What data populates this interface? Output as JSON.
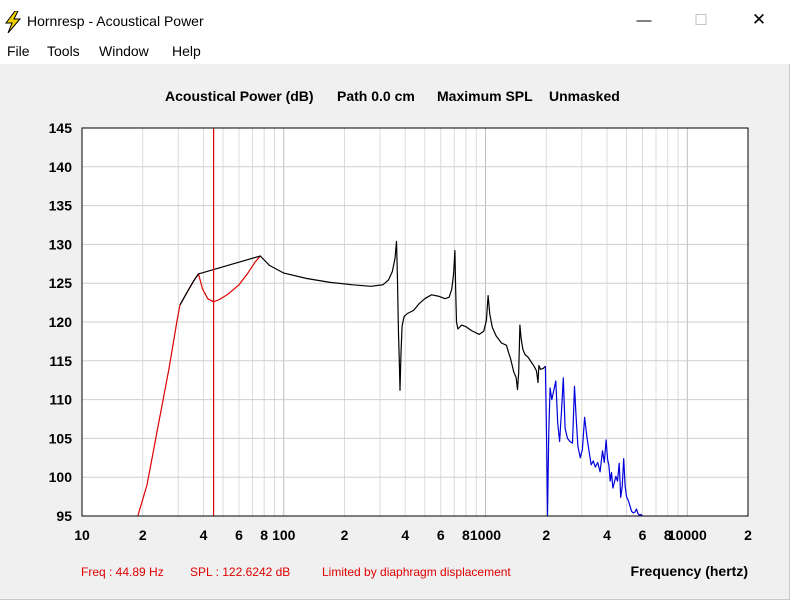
{
  "window": {
    "title": "Hornresp - Acoustical Power",
    "controls": {
      "minimize": "—",
      "maximize": "☐",
      "close": "✕"
    }
  },
  "menu": {
    "file": "File",
    "tools": "Tools",
    "window": "Window",
    "help": "Help"
  },
  "header": {
    "mode": "Acoustical Power (dB)",
    "path": "Path 0.0 cm",
    "spl": "Maximum SPL",
    "mask": "Unmasked"
  },
  "status": {
    "freq": "Freq : 44.89 Hz",
    "spl": "SPL : 122.6242 dB",
    "note": "Limited by diaphragm displacement"
  },
  "x_axis_title": "Frequency (hertz)",
  "colors": {
    "limited": "#e00000",
    "normal": "#000000",
    "high": "#0000dd",
    "marker": "#e00000",
    "status": "#e00000"
  },
  "chart_data": {
    "type": "line",
    "x_scale": "log",
    "xlim": [
      10,
      20000
    ],
    "ylim": [
      95,
      145
    ],
    "y_ticks": [
      145,
      140,
      135,
      130,
      125,
      120,
      115,
      110,
      105,
      100,
      95
    ],
    "x_ticks": [
      {
        "value": 10,
        "label": "10"
      },
      {
        "value": 20,
        "label": "2"
      },
      {
        "value": 40,
        "label": "4"
      },
      {
        "value": 60,
        "label": "6"
      },
      {
        "value": 80,
        "label": "8"
      },
      {
        "value": 100,
        "label": "100"
      },
      {
        "value": 200,
        "label": "2"
      },
      {
        "value": 400,
        "label": "4"
      },
      {
        "value": 600,
        "label": "6"
      },
      {
        "value": 800,
        "label": "8"
      },
      {
        "value": 1000,
        "label": "1000"
      },
      {
        "value": 2000,
        "label": "2"
      },
      {
        "value": 4000,
        "label": "4"
      },
      {
        "value": 6000,
        "label": "6"
      },
      {
        "value": 8000,
        "label": "8"
      },
      {
        "value": 10000,
        "label": "10000"
      },
      {
        "value": 20000,
        "label": "2"
      }
    ],
    "grid": true,
    "marker_x": 44.89,
    "series": [
      {
        "color": "#e00000",
        "points": [
          [
            18.9,
            95
          ],
          [
            21,
            99
          ],
          [
            24,
            107
          ],
          [
            27,
            114
          ],
          [
            29.5,
            120
          ],
          [
            30.6,
            122.2
          ],
          [
            32,
            123.1
          ],
          [
            34,
            124.3
          ],
          [
            36,
            125.4
          ],
          [
            37.8,
            126.2
          ],
          [
            39.5,
            124.3
          ],
          [
            42,
            123
          ],
          [
            44.89,
            122.6
          ],
          [
            48,
            122.9
          ],
          [
            53,
            123.6
          ],
          [
            60,
            124.8
          ],
          [
            66,
            126.2
          ],
          [
            72,
            127.7
          ],
          [
            76.5,
            128.5
          ]
        ]
      },
      {
        "color": "#000000",
        "points": [
          [
            30.6,
            122.2
          ],
          [
            32,
            123.1
          ],
          [
            34,
            124.3
          ],
          [
            36,
            125.4
          ],
          [
            37.8,
            126.2
          ],
          [
            76.5,
            128.5
          ],
          [
            85,
            127.3
          ],
          [
            100,
            126.3
          ],
          [
            130,
            125.6
          ],
          [
            170,
            125.1
          ],
          [
            220,
            124.8
          ],
          [
            270,
            124.6
          ],
          [
            310,
            124.8
          ],
          [
            330,
            125.4
          ],
          [
            345,
            126.5
          ],
          [
            356,
            128.2
          ],
          [
            362,
            130.4
          ],
          [
            366,
            126
          ],
          [
            370,
            119
          ],
          [
            374,
            115
          ],
          [
            377,
            111.2
          ],
          [
            381,
            116
          ],
          [
            386,
            119.5
          ],
          [
            395,
            120.7
          ],
          [
            410,
            121.1
          ],
          [
            440,
            121.5
          ],
          [
            470,
            122.4
          ],
          [
            500,
            123
          ],
          [
            540,
            123.5
          ],
          [
            590,
            123.3
          ],
          [
            630,
            123
          ],
          [
            660,
            123.2
          ],
          [
            680,
            124.2
          ],
          [
            695,
            126.2
          ],
          [
            705,
            129.2
          ],
          [
            712,
            124
          ],
          [
            718,
            120
          ],
          [
            730,
            119.1
          ],
          [
            760,
            119.6
          ],
          [
            800,
            119.4
          ],
          [
            850,
            118.9
          ],
          [
            930,
            118.4
          ],
          [
            980,
            118.8
          ],
          [
            1010,
            120.2
          ],
          [
            1030,
            123.4
          ],
          [
            1050,
            121
          ],
          [
            1080,
            119.3
          ],
          [
            1130,
            118.2
          ],
          [
            1200,
            117.3
          ],
          [
            1270,
            117
          ],
          [
            1300,
            116.1
          ],
          [
            1330,
            115.3
          ],
          [
            1380,
            113.6
          ],
          [
            1420,
            112.8
          ],
          [
            1440,
            111.3
          ],
          [
            1460,
            113.5
          ],
          [
            1480,
            119.6
          ],
          [
            1500,
            118
          ],
          [
            1530,
            116.5
          ],
          [
            1570,
            115.8
          ],
          [
            1620,
            115.5
          ],
          [
            1680,
            114.9
          ],
          [
            1740,
            114.3
          ],
          [
            1790,
            113.7
          ],
          [
            1820,
            112.2
          ],
          [
            1840,
            114.4
          ],
          [
            1870,
            113.9
          ],
          [
            1930,
            114
          ],
          [
            1980,
            114.3
          ]
        ]
      },
      {
        "color": "#0000dd",
        "points": [
          [
            1980,
            114.3
          ],
          [
            2010,
            104
          ],
          [
            2030,
            95
          ],
          [
            2060,
            106
          ],
          [
            2090,
            111.5
          ],
          [
            2130,
            110
          ],
          [
            2180,
            111.2
          ],
          [
            2230,
            112.4
          ],
          [
            2280,
            107
          ],
          [
            2330,
            104.6
          ],
          [
            2380,
            108.5
          ],
          [
            2430,
            112.8
          ],
          [
            2480,
            106.3
          ],
          [
            2550,
            105
          ],
          [
            2620,
            104.6
          ],
          [
            2700,
            104.4
          ],
          [
            2760,
            111.7
          ],
          [
            2810,
            108
          ],
          [
            2870,
            104
          ],
          [
            2950,
            102.5
          ],
          [
            3020,
            103.6
          ],
          [
            3100,
            107.7
          ],
          [
            3180,
            105.2
          ],
          [
            3260,
            103.3
          ],
          [
            3340,
            101.6
          ],
          [
            3420,
            102.1
          ],
          [
            3500,
            101.3
          ],
          [
            3600,
            101.9
          ],
          [
            3700,
            100.7
          ],
          [
            3800,
            103.4
          ],
          [
            3880,
            101.9
          ],
          [
            3960,
            104.8
          ],
          [
            4030,
            102.3
          ],
          [
            4090,
            101.5
          ],
          [
            4150,
            99.5
          ],
          [
            4210,
            100.6
          ],
          [
            4280,
            98.6
          ],
          [
            4350,
            99.3
          ],
          [
            4430,
            100.1
          ],
          [
            4510,
            99.5
          ],
          [
            4600,
            101.8
          ],
          [
            4680,
            97.4
          ],
          [
            4760,
            98.8
          ],
          [
            4840,
            102.4
          ],
          [
            4920,
            98.9
          ],
          [
            5000,
            97.5
          ],
          [
            5100,
            97
          ],
          [
            5200,
            96.3
          ],
          [
            5300,
            95.6
          ],
          [
            5400,
            95.4
          ],
          [
            5500,
            95.5
          ],
          [
            5600,
            95.9
          ],
          [
            5700,
            95.3
          ],
          [
            5800,
            95.1
          ],
          [
            5900,
            95.2
          ],
          [
            6000,
            95
          ]
        ]
      }
    ]
  }
}
